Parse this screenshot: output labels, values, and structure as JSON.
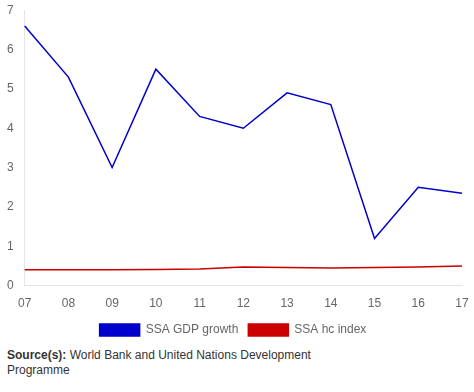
{
  "chart_data": {
    "type": "line",
    "categories": [
      "07",
      "08",
      "09",
      "10",
      "11",
      "12",
      "13",
      "14",
      "15",
      "16",
      "17"
    ],
    "series": [
      {
        "name": "SSA GDP growth",
        "color": "#0000cc",
        "marker": "none",
        "values": [
          6.6,
          5.3,
          3.0,
          5.5,
          4.3,
          4.0,
          4.9,
          4.6,
          1.2,
          2.5,
          2.35
        ]
      },
      {
        "name": "SSA hc index",
        "color": "#cc0000",
        "marker": "none",
        "values": [
          0.4,
          0.4,
          0.4,
          0.41,
          0.42,
          0.47,
          0.46,
          0.45,
          0.46,
          0.47,
          0.5
        ]
      }
    ],
    "ylim": [
      0,
      7
    ],
    "yticks": [
      0,
      1,
      2,
      3,
      4,
      5,
      6,
      7
    ],
    "grid": false,
    "legend": "bottom",
    "annotations": [
      "Source(s): World Bank and United Nations Development\nProgramme"
    ]
  }
}
